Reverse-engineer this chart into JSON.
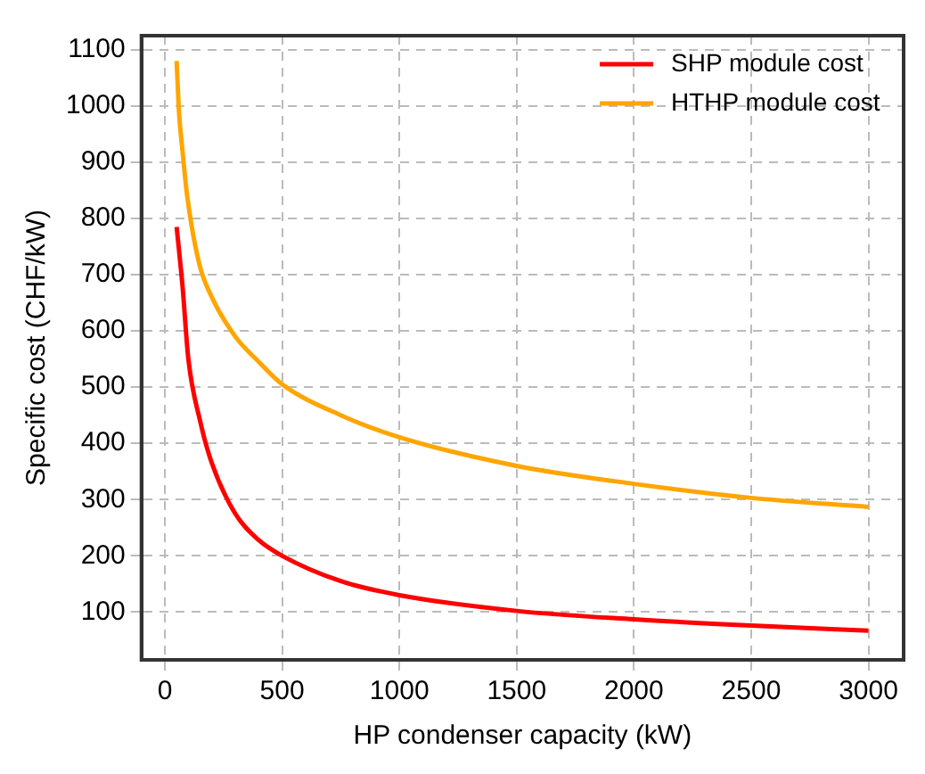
{
  "chart_data": {
    "type": "line",
    "xlabel": "HP condenser capacity (kW)",
    "ylabel": "Specific cost (CHF/kW)",
    "xlim": [
      -100,
      3150
    ],
    "xticks": [
      0,
      500,
      1000,
      1500,
      2000,
      2500,
      3000
    ],
    "ylim": [
      15,
      1125
    ],
    "yticks": [
      100,
      200,
      300,
      400,
      500,
      600,
      700,
      800,
      900,
      1000,
      1100
    ],
    "grid": true,
    "legend": "top right",
    "marker": "none",
    "line_style": "solid",
    "series": [
      {
        "name": "SHP module cost",
        "color": "#ff0000",
        "x": [
          50,
          75,
          100,
          150,
          200,
          300,
          400,
          500,
          750,
          1000,
          1500,
          2000,
          2500,
          3000
        ],
        "values": [
          785,
          680,
          550,
          440,
          365,
          275,
          228,
          200,
          155,
          130,
          102,
          87,
          76,
          67
        ]
      },
      {
        "name": "HTHP module cost",
        "color": "#ffa500",
        "x": [
          50,
          60,
          75,
          95,
          146,
          200,
          300,
          400,
          500,
          750,
          1000,
          1500,
          2000,
          2500,
          3000
        ],
        "values": [
          1080,
          990,
          920,
          840,
          720,
          660,
          590,
          545,
          505,
          450,
          411,
          360,
          328,
          303,
          287
        ]
      }
    ]
  }
}
